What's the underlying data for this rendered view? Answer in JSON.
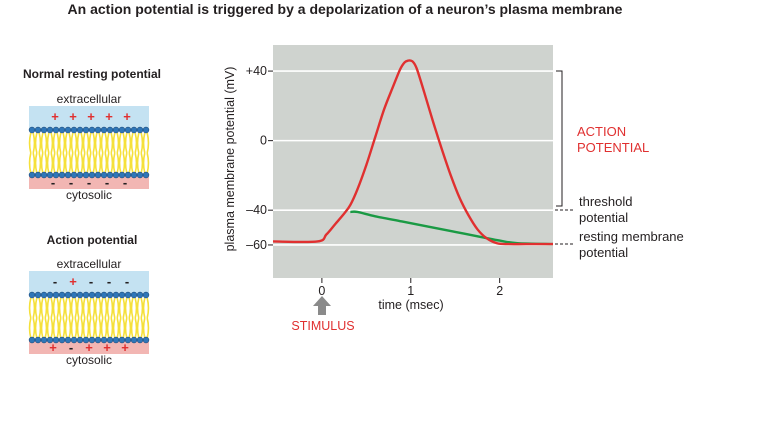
{
  "title": "An action potential is triggered by a depolarization of a neuron’s plasma membrane",
  "membranes": [
    {
      "heading": "Normal resting potential",
      "top_label": "extracellular",
      "bottom_label": "cytosolic",
      "top_charges": [
        "+",
        "+",
        "+",
        "+",
        "+"
      ],
      "bottom_charges": [
        "-",
        "-",
        "-",
        "-",
        "-"
      ]
    },
    {
      "heading": "Action potential",
      "top_label": "extracellular",
      "bottom_label": "cytosolic",
      "top_charges": [
        "-",
        "+",
        "-",
        "-",
        "-"
      ],
      "bottom_charges": [
        "+",
        "-",
        "+",
        "+",
        "+"
      ]
    }
  ],
  "colors": {
    "plot_background": "#cfd3cf",
    "action_potential": "#e03030",
    "subthreshold": "#1a9a44",
    "label_red": "#e03030",
    "arrow_gray": "#8a8a8a",
    "extracellular_band": "#c4e2f2",
    "cytosolic_band": "#f2b6b3",
    "lipid_head": "#2f76b8",
    "lipid_tail": "#f5e03a"
  },
  "stimulus_label": "STIMULUS",
  "annotations": {
    "action_potential": [
      "ACTION",
      "POTENTIAL"
    ],
    "threshold": [
      "threshold",
      "potential"
    ],
    "resting": [
      "resting membrane",
      "potential"
    ]
  },
  "chart_data": {
    "type": "line",
    "xlabel": "time (msec)",
    "ylabel": "plasma membrane potential (mV)",
    "xlim": [
      -0.55,
      2.6
    ],
    "ylim": [
      -79,
      55
    ],
    "x_ticks": [
      0,
      1,
      2
    ],
    "x_tick_labels": [
      "0",
      "1",
      "2"
    ],
    "y_ticks": [
      40,
      0,
      -40,
      -60
    ],
    "y_tick_labels": [
      "+40",
      "0",
      "–40",
      "–60"
    ],
    "grid": "horizontal",
    "legend": "none",
    "series": [
      {
        "x": [
          -0.55,
          -0.05,
          0.05,
          0.15,
          0.25,
          0.32,
          0.4,
          0.5,
          0.6,
          0.7,
          0.8,
          0.88,
          0.93,
          0.97,
          1.0,
          1.03,
          1.07,
          1.15,
          1.25,
          1.35,
          1.45,
          1.55,
          1.65,
          1.75,
          1.85,
          1.97,
          2.1,
          2.3,
          2.6
        ],
        "y": [
          -58,
          -58,
          -54,
          -48,
          -42,
          -37,
          -28,
          -14,
          2,
          18,
          31,
          41,
          45,
          46,
          46,
          45,
          41,
          28,
          11,
          -5,
          -20,
          -33,
          -43,
          -51,
          -56,
          -59,
          -59.5,
          -59.5,
          -59.5
        ]
      },
      {
        "x": [
          0.32,
          0.4,
          0.6,
          0.9,
          1.2,
          1.5,
          1.8,
          2.0,
          2.2,
          2.6
        ],
        "y": [
          -41,
          -41,
          -43.5,
          -46.5,
          -49.5,
          -52.5,
          -55.5,
          -57.5,
          -59,
          -59.5
        ]
      }
    ]
  }
}
